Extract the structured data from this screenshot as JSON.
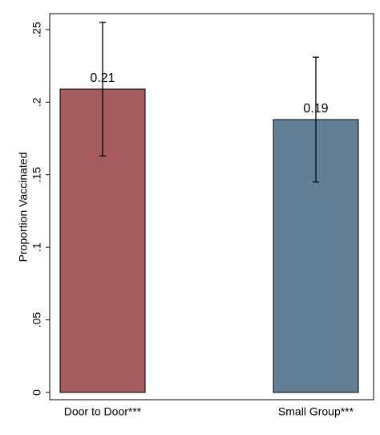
{
  "chart_data": {
    "type": "bar",
    "y_label": "Proportion Vaccinated",
    "categories": [
      "Door to Door***",
      "Small Group***"
    ],
    "values": [
      0.209,
      0.188
    ],
    "value_labels": [
      "0.21",
      "0.19"
    ],
    "errors": [
      0.046,
      0.043
    ],
    "colors": [
      "#a55c5e",
      "#637f96"
    ],
    "ylim": [
      -0.005,
      0.261
    ],
    "yticks": [
      0,
      {
        "value": 0.05,
        "label": ".05"
      },
      {
        "value": 0.1,
        "label": ".1"
      },
      {
        "value": 0.15,
        "label": ".15"
      },
      {
        "value": 0.2,
        "label": ".2"
      },
      {
        "value": 0.25,
        "label": ".25"
      }
    ],
    "grid": false
  }
}
